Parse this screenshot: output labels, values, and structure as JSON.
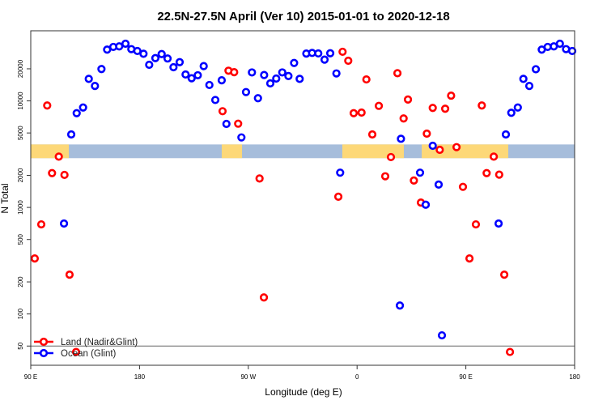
{
  "chart_data": {
    "type": "scatter",
    "title": "22.5N-27.5N April (Ver 10)   2015-01-01 to 2020-12-18",
    "xlabel": "Longitude (deg E)",
    "ylabel": "N Total",
    "yscale": "log",
    "xlim": [
      90,
      540
    ],
    "ylim": [
      33,
      45500
    ],
    "x_ticks": [
      {
        "value": 90,
        "label": "90 E"
      },
      {
        "value": 180,
        "label": "180"
      },
      {
        "value": 270,
        "label": "90 W"
      },
      {
        "value": 360,
        "label": "0"
      },
      {
        "value": 450,
        "label": "90 E"
      },
      {
        "value": 540,
        "label": "180"
      }
    ],
    "y_ticks": [
      {
        "value": 20000,
        "label": "20000"
      },
      {
        "value": 10000,
        "label": "10000"
      },
      {
        "value": 5000,
        "label": "5000"
      },
      {
        "value": 2000,
        "label": "2000"
      },
      {
        "value": 1000,
        "label": "1000"
      },
      {
        "value": 500,
        "label": "500"
      },
      {
        "value": 200,
        "label": "200"
      },
      {
        "value": 100,
        "label": "100"
      },
      {
        "value": 50,
        "label": "50"
      }
    ],
    "reference_line": 50,
    "surface_band": {
      "level_range": [
        2900,
        3900
      ],
      "ocean_color": "#a6bddb",
      "land_color": "#fdd878",
      "land_segments": [
        [
          90,
          121.5
        ],
        [
          248,
          264.8
        ],
        [
          347.8,
          398.7
        ],
        [
          413.5,
          485.1
        ]
      ]
    },
    "legend": {
      "placement": "bottom-left"
    },
    "series": [
      {
        "name": "Land (Nadir&Glint)",
        "color": "#ff0000",
        "points": [
          [
            93.3,
            332
          ],
          [
            98.7,
            693
          ],
          [
            103.6,
            9050
          ],
          [
            107.6,
            2100
          ],
          [
            113.2,
            3000
          ],
          [
            117.9,
            2020
          ],
          [
            122.1,
            234
          ],
          [
            127.5,
            44
          ],
          [
            248.7,
            8000
          ],
          [
            253.6,
            19200
          ],
          [
            258.3,
            18600
          ],
          [
            261.6,
            6110
          ],
          [
            279.3,
            1870
          ],
          [
            282.9,
            143
          ],
          [
            344.5,
            1260
          ],
          [
            348.0,
            28900
          ],
          [
            352.7,
            23800
          ],
          [
            357.2,
            7670
          ],
          [
            363.7,
            7770
          ],
          [
            367.7,
            15900
          ],
          [
            372.6,
            4840
          ],
          [
            378.0,
            8980
          ],
          [
            383.3,
            1960
          ],
          [
            388.0,
            2970
          ],
          [
            393.4,
            18200
          ],
          [
            398.5,
            6840
          ],
          [
            402.1,
            10300
          ],
          [
            407.0,
            1790
          ],
          [
            412.8,
            1110
          ],
          [
            417.7,
            4930
          ],
          [
            422.6,
            8590
          ],
          [
            428.4,
            3470
          ],
          [
            432.9,
            8440
          ],
          [
            437.8,
            11200
          ],
          [
            442.3,
            3680
          ],
          [
            447.6,
            1560
          ],
          [
            453.0,
            332
          ],
          [
            458.3,
            693
          ],
          [
            463.2,
            9050
          ],
          [
            467.2,
            2100
          ],
          [
            473.1,
            3000
          ],
          [
            477.6,
            2030
          ],
          [
            481.8,
            234
          ],
          [
            486.5,
            44
          ]
        ]
      },
      {
        "name": "Ocean (Glint)",
        "color": "#0000ff",
        "points": [
          [
            117.5,
            706
          ],
          [
            123.5,
            4840
          ],
          [
            128.0,
            7670
          ],
          [
            133.3,
            8670
          ],
          [
            138.0,
            16100
          ],
          [
            143.1,
            13800
          ],
          [
            148.5,
            19900
          ],
          [
            153.2,
            30300
          ],
          [
            158.3,
            32100
          ],
          [
            163.2,
            32500
          ],
          [
            168.4,
            34400
          ],
          [
            173.2,
            30600
          ],
          [
            178.2,
            29400
          ],
          [
            183.3,
            27700
          ],
          [
            188.0,
            21800
          ],
          [
            193.1,
            25200
          ],
          [
            198.3,
            27500
          ],
          [
            203.2,
            25000
          ],
          [
            208.1,
            20700
          ],
          [
            213.2,
            23100
          ],
          [
            218.1,
            17700
          ],
          [
            223.1,
            16300
          ],
          [
            228.2,
            17400
          ],
          [
            233.1,
            21200
          ],
          [
            237.8,
            14100
          ],
          [
            242.7,
            10200
          ],
          [
            248.0,
            15600
          ],
          [
            251.9,
            6080
          ],
          [
            264.3,
            4540
          ],
          [
            268.1,
            12100
          ],
          [
            273.0,
            18500
          ],
          [
            278.0,
            10600
          ],
          [
            283.1,
            17500
          ],
          [
            288.2,
            14600
          ],
          [
            293.1,
            16200
          ],
          [
            298.1,
            18500
          ],
          [
            303.2,
            17100
          ],
          [
            307.9,
            22700
          ],
          [
            312.5,
            16100
          ],
          [
            318.0,
            27800
          ],
          [
            322.8,
            28200
          ],
          [
            327.9,
            27900
          ],
          [
            333.1,
            24400
          ],
          [
            337.8,
            28000
          ],
          [
            342.9,
            18100
          ],
          [
            346.0,
            2120
          ],
          [
            395.4,
            120
          ],
          [
            396.3,
            4410
          ],
          [
            412.1,
            2120
          ],
          [
            416.8,
            1060
          ],
          [
            422.6,
            3790
          ],
          [
            427.5,
            1640
          ],
          [
            430.2,
            63
          ],
          [
            477.1,
            706
          ],
          [
            483.1,
            4840
          ],
          [
            487.6,
            7730
          ],
          [
            493.0,
            8670
          ],
          [
            497.6,
            16100
          ],
          [
            502.5,
            13800
          ],
          [
            507.9,
            19800
          ],
          [
            512.8,
            30300
          ],
          [
            517.7,
            32100
          ],
          [
            522.8,
            32500
          ],
          [
            527.8,
            34400
          ],
          [
            532.9,
            30600
          ],
          [
            538.0,
            29400
          ]
        ]
      }
    ]
  }
}
